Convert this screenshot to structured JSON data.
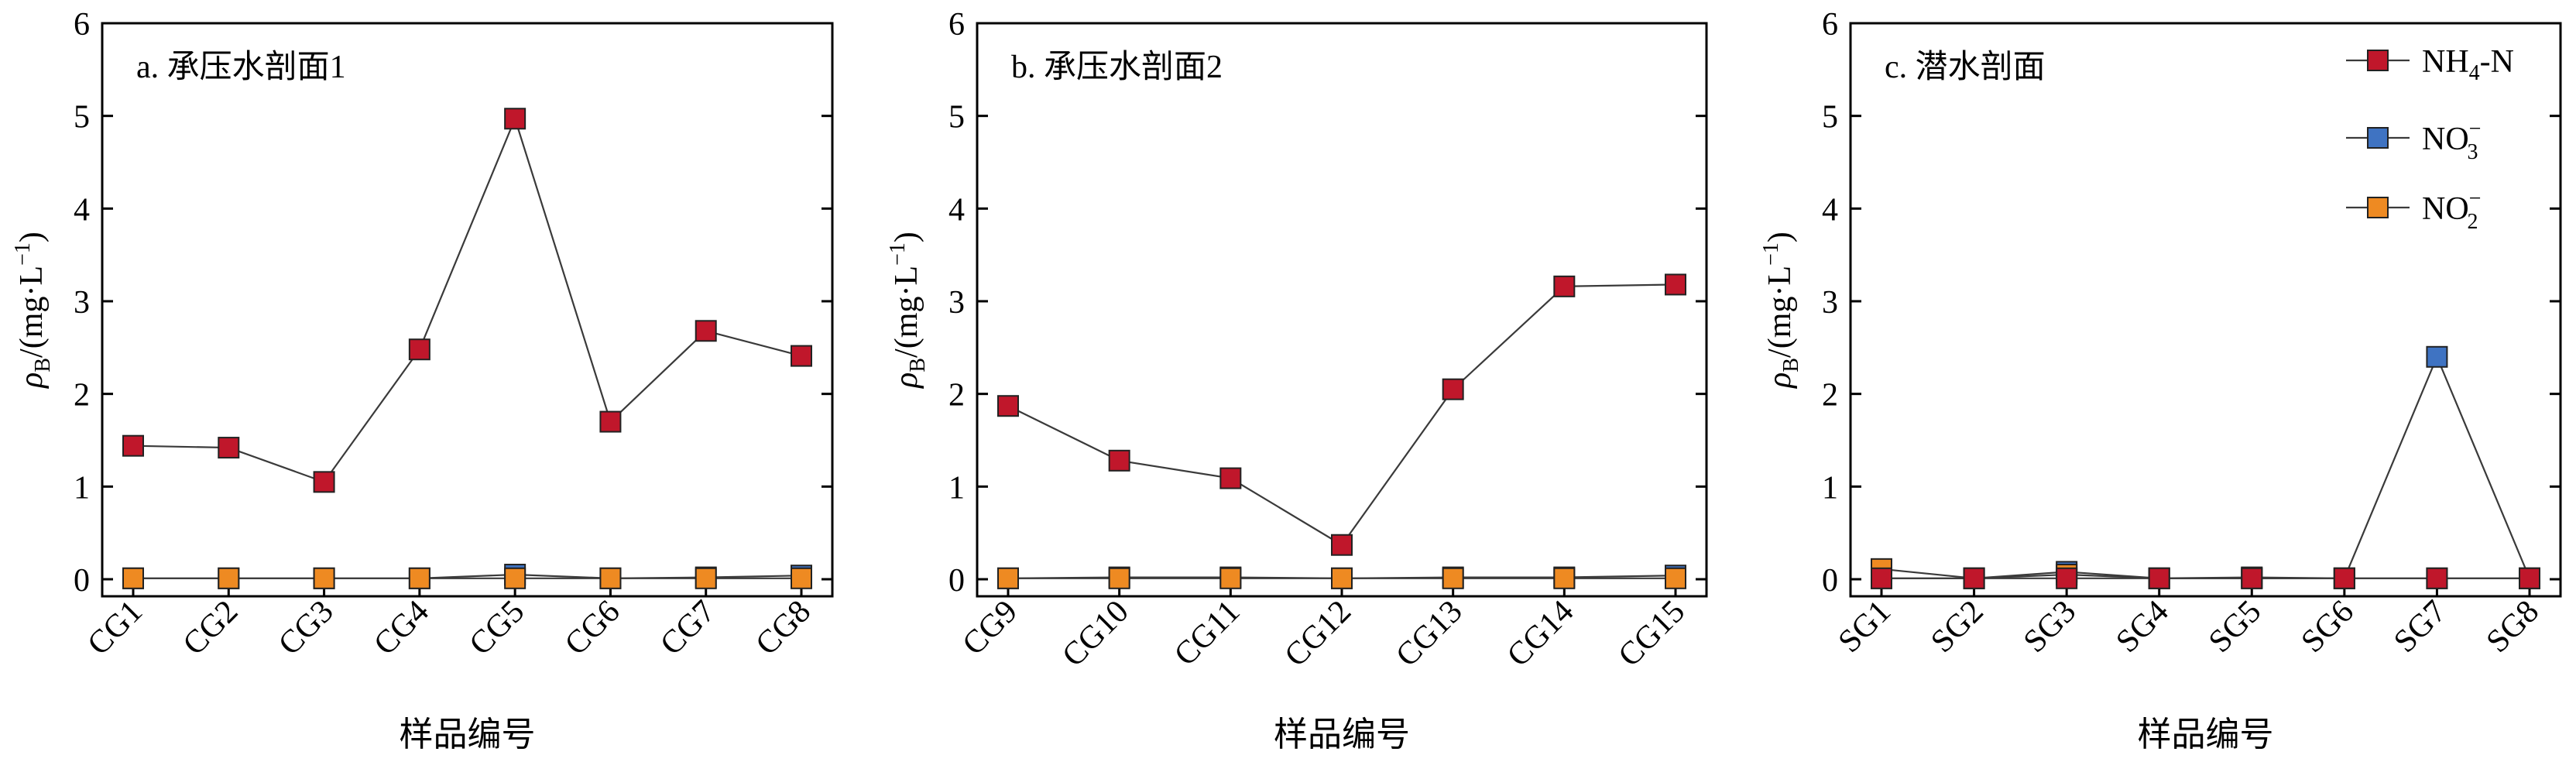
{
  "shared": {
    "xlabel": "样品编号",
    "ylabel_main": "ρ",
    "ylabel_sub": "B",
    "ylabel_unit": "/(mg·L",
    "ylabel_exp": "−1",
    "ylabel_close": ")",
    "ylim": [
      0,
      6
    ],
    "yticks": [
      "0",
      "1",
      "2",
      "3",
      "4",
      "5",
      "6"
    ]
  },
  "legend": {
    "items": [
      {
        "main": "NH",
        "sub": "4",
        "sup": "",
        "tail": "-N",
        "color": "#c0172b"
      },
      {
        "main": "NO",
        "sub": "3",
        "sup": "−",
        "tail": "",
        "color": "#3f73c2"
      },
      {
        "main": "NO",
        "sub": "2",
        "sup": "−",
        "tail": "",
        "color": "#ee8a22"
      }
    ]
  },
  "chart_data": [
    {
      "type": "line",
      "title": "a. 承压水剖面1",
      "categories": [
        "CG1",
        "CG2",
        "CG3",
        "CG4",
        "CG5",
        "CG6",
        "CG7",
        "CG8"
      ],
      "ylim": [
        0,
        6
      ],
      "series": [
        {
          "name": "NH4-N",
          "color": "#c0172b",
          "values": [
            1.44,
            1.42,
            1.05,
            2.48,
            4.97,
            1.7,
            2.68,
            2.41
          ]
        },
        {
          "name": "NO3-",
          "color": "#3f73c2",
          "values": [
            0.01,
            0.01,
            0.01,
            0.01,
            0.05,
            0.01,
            0.02,
            0.04
          ]
        },
        {
          "name": "NO2-",
          "color": "#ee8a22",
          "values": [
            0.01,
            0.01,
            0.01,
            0.01,
            0.01,
            0.01,
            0.01,
            0.01
          ]
        }
      ]
    },
    {
      "type": "line",
      "title": "b. 承压水剖面2",
      "categories": [
        "CG9",
        "CG10",
        "CG11",
        "CG12",
        "CG13",
        "CG14",
        "CG15"
      ],
      "ylim": [
        0,
        6
      ],
      "series": [
        {
          "name": "NH4-N",
          "color": "#c0172b",
          "values": [
            1.87,
            1.28,
            1.09,
            0.37,
            2.05,
            3.16,
            3.18
          ]
        },
        {
          "name": "NO3-",
          "color": "#3f73c2",
          "values": [
            0.01,
            0.02,
            0.02,
            0.01,
            0.02,
            0.02,
            0.04
          ]
        },
        {
          "name": "NO2-",
          "color": "#ee8a22",
          "values": [
            0.01,
            0.01,
            0.01,
            0.01,
            0.01,
            0.01,
            0.01
          ]
        }
      ]
    },
    {
      "type": "line",
      "title": "c. 潜水剖面",
      "categories": [
        "SG1",
        "SG2",
        "SG3",
        "SG4",
        "SG5",
        "SG6",
        "SG7",
        "SG8"
      ],
      "ylim": [
        0,
        6
      ],
      "series": [
        {
          "name": "NH4-N",
          "color": "#c0172b",
          "values": [
            0.01,
            0.01,
            0.01,
            0.01,
            0.01,
            0.01,
            0.01,
            0.01
          ]
        },
        {
          "name": "NO3-",
          "color": "#3f73c2",
          "values": [
            0.01,
            0.01,
            0.08,
            0.01,
            0.01,
            0.01,
            2.4,
            0.01
          ]
        },
        {
          "name": "NO2-",
          "color": "#ee8a22",
          "values": [
            0.11,
            0.01,
            0.05,
            0.01,
            0.02,
            0.01,
            0.01,
            0.01
          ]
        }
      ]
    }
  ]
}
